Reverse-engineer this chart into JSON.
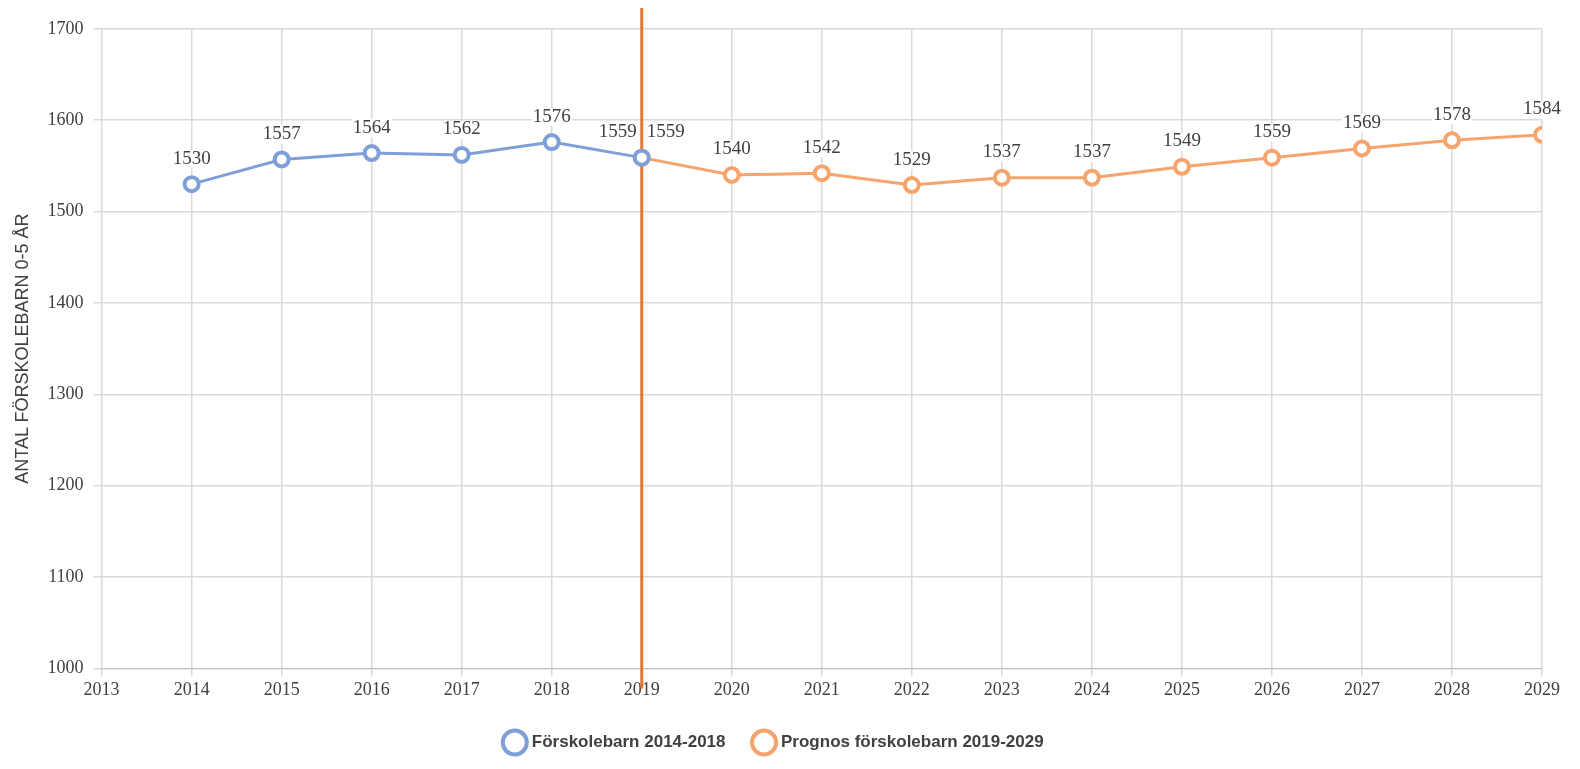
{
  "chart_data": {
    "type": "line",
    "ylabel": "ANTAL FÖRSKOLEBARN 0-5 ÅR",
    "series": [
      {
        "name": "Förskolebarn 2014-2018",
        "color": "#7f9fd8",
        "x": [
          2014,
          2015,
          2016,
          2017,
          2018,
          2019
        ],
        "values": [
          1530,
          1557,
          1564,
          1562,
          1576,
          1559
        ]
      },
      {
        "name": "Prognos förskolebarn 2019-2029",
        "color": "#f4a46c",
        "x": [
          2019,
          2020,
          2021,
          2022,
          2023,
          2024,
          2025,
          2026,
          2027,
          2028,
          2029
        ],
        "values": [
          1559,
          1540,
          1542,
          1529,
          1537,
          1537,
          1549,
          1559,
          1569,
          1578,
          1584
        ]
      }
    ],
    "xlim": [
      2013,
      2029
    ],
    "xticks": [
      2013,
      2014,
      2015,
      2016,
      2017,
      2018,
      2019,
      2020,
      2021,
      2022,
      2023,
      2024,
      2025,
      2026,
      2027,
      2028,
      2029
    ],
    "ylim": [
      1000,
      1700
    ],
    "yticks": [
      1000,
      1100,
      1200,
      1300,
      1400,
      1500,
      1600,
      1700
    ],
    "ref_lines": [
      {
        "axis": "x",
        "value": 2019,
        "color": "#e8772e"
      }
    ],
    "grid": true,
    "legend": "bottom",
    "marker": "circle",
    "data_labels": true
  }
}
